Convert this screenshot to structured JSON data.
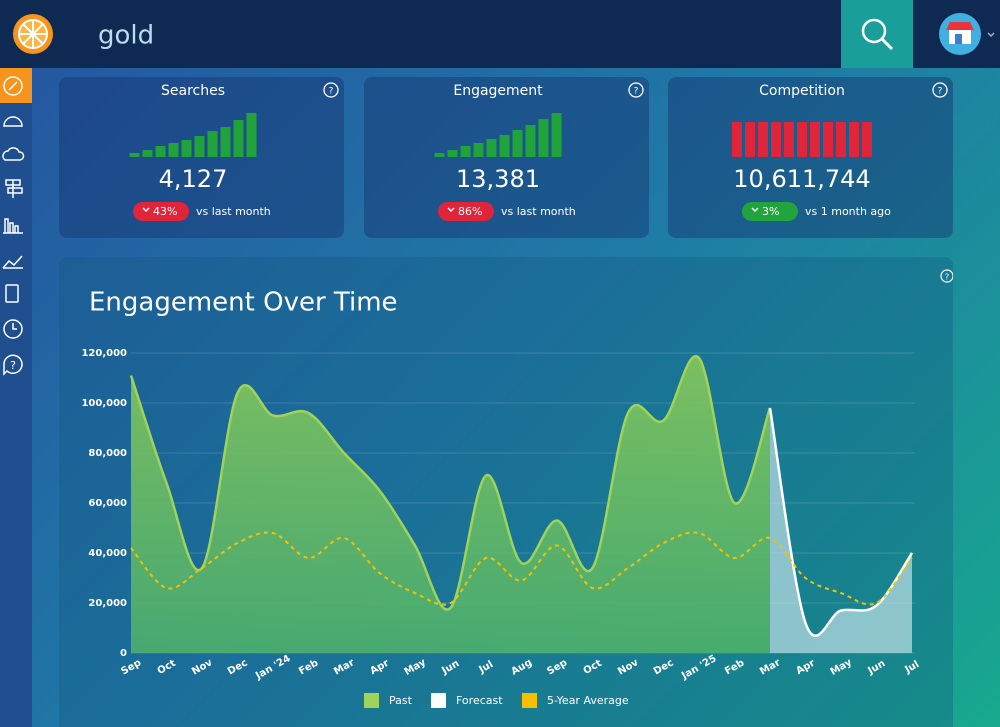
{
  "search": {
    "query": "gold"
  },
  "cards": [
    {
      "title": "Searches",
      "value": "4,127",
      "change": "43%",
      "comparison": "vs last month",
      "trend_color": "#1fa33a",
      "badge_color": "#e0243a",
      "trend": [
        4,
        7,
        11,
        14,
        17,
        21,
        26,
        30,
        37,
        44
      ]
    },
    {
      "title": "Engagement",
      "value": "13,381",
      "change": "86%",
      "comparison": "vs last month",
      "trend_color": "#1fa33a",
      "badge_color": "#e0243a",
      "trend": [
        4,
        7,
        11,
        14,
        18,
        22,
        27,
        32,
        38,
        44
      ]
    },
    {
      "title": "Competition",
      "value": "10,611,744",
      "change": "3%",
      "comparison": "vs 1 month ago",
      "trend_color": "#e0243a",
      "badge_color": "#21a33d",
      "trend": [
        35,
        35,
        35,
        35,
        35,
        35,
        35,
        35,
        35,
        35,
        35
      ]
    }
  ],
  "chart_data": {
    "type": "area",
    "title": "Engagement Over Time",
    "categories": [
      "Sep",
      "Oct",
      "Nov",
      "Dec",
      "Jan '24",
      "Feb",
      "Mar",
      "Apr",
      "May",
      "Jun",
      "Jul",
      "Aug",
      "Sep",
      "Oct",
      "Nov",
      "Dec",
      "Jan '25",
      "Feb",
      "Mar",
      "Apr",
      "May",
      "Jun",
      "Jul"
    ],
    "series": [
      {
        "name": "Past",
        "color": "#9fd35a",
        "values": [
          111000,
          68000,
          34000,
          104000,
          95000,
          96000,
          80000,
          65000,
          43000,
          18000,
          71000,
          36000,
          53000,
          34000,
          96000,
          93000,
          118000,
          60000,
          98000,
          null,
          null,
          null,
          null
        ]
      },
      {
        "name": "Forecast",
        "color": "#ffffff",
        "values": [
          null,
          null,
          null,
          null,
          null,
          null,
          null,
          null,
          null,
          null,
          null,
          null,
          null,
          null,
          null,
          null,
          null,
          null,
          98000,
          12000,
          17000,
          19000,
          40000
        ]
      },
      {
        "name": "5-Year Average",
        "color": "#f5c000",
        "values": [
          42000,
          26000,
          34000,
          44000,
          48000,
          38000,
          46000,
          32000,
          24000,
          20000,
          38000,
          29000,
          43000,
          26000,
          34000,
          44000,
          48000,
          38000,
          46000,
          30000,
          24000,
          20000,
          38000
        ]
      }
    ],
    "ylim": [
      0,
      120000
    ],
    "yticks": [
      0,
      {
        "value": 20000,
        "label": "20,000"
      },
      {
        "value": 40000,
        "label": "40,000"
      },
      {
        "value": 60000,
        "label": "60,000"
      },
      {
        "value": 80000,
        "label": "80,000"
      },
      {
        "value": 100000,
        "label": "100,000"
      },
      {
        "value": 120000,
        "label": "120,000"
      }
    ],
    "grid": true,
    "legend": "bottom"
  }
}
